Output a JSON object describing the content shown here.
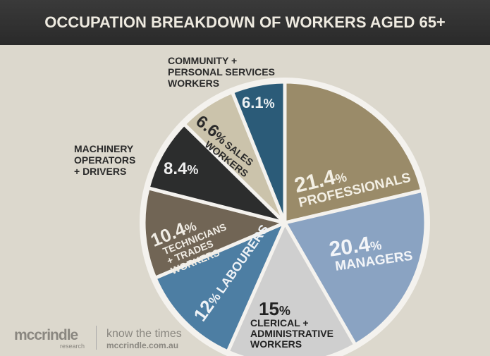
{
  "title": "OCCUPATION BREAKDOWN OF WORKERS AGED 65+",
  "chart_data": {
    "type": "pie",
    "title": "OCCUPATION BREAKDOWN OF WORKERS AGED 65+",
    "categories": [
      "PROFESSIONALS",
      "MANAGERS",
      "CLERICAL + ADMINISTRATIVE WORKERS",
      "LABOURERS",
      "TECHNICIANS + TRADES WORKERS",
      "MACHINERY OPERATORS + DRIVERS",
      "SALES WORKERS",
      "COMMUNITY + PERSONAL SERVICES WORKERS"
    ],
    "values": [
      21.4,
      20.4,
      15,
      12,
      10.4,
      8.4,
      6.6,
      6.1
    ],
    "labels": [
      "21.4",
      "20.4",
      "15",
      "12",
      "10.4",
      "8.4",
      "6.6",
      "6.1"
    ],
    "colors": [
      "#9a8b69",
      "#8aa3c2",
      "#cfcfcf",
      "#4d7ea3",
      "#716555",
      "#2c2d2d",
      "#cbc3ab",
      "#2b5b78"
    ],
    "legend": "none"
  },
  "labels": {
    "professionals": "PROFESSIONALS",
    "managers": "MANAGERS",
    "clerical1": "CLERICAL +",
    "clerical2": "ADMINISTRATIVE",
    "clerical3": "WORKERS",
    "labourers": "LABOURERS",
    "tech1": "TECHNICIANS",
    "tech2": "+ TRADES",
    "tech3": "WORKERS",
    "mach1": "MACHINERY",
    "mach2": "OPERATORS",
    "mach3": "+ DRIVERS",
    "sales1": "SALES",
    "sales2": "WORKERS",
    "comm1": "COMMUNITY +",
    "comm2": "PERSONAL SERVICES",
    "comm3": "WORKERS",
    "pct": "%"
  },
  "footer": {
    "logo": "mccrindle",
    "logo_sub": "research",
    "tagline": "know the times",
    "url": "mccrindle.com.au"
  }
}
